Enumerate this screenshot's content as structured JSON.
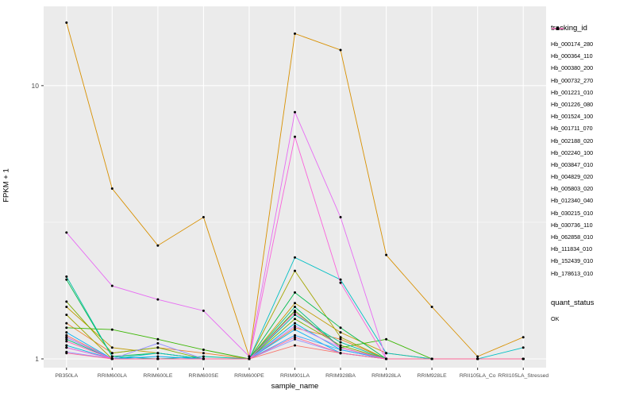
{
  "figure": {
    "y_axis_label": "FPKM + 1",
    "x_axis_label": "sample_name",
    "tracking_legend_title": "tracking_id",
    "quant_legend_title": "quant_status",
    "quant_legend_item": "OK"
  },
  "chart_data": {
    "type": "line",
    "title": "",
    "xlabel": "sample_name",
    "ylabel": "FPKM + 1",
    "y_scale": "log10",
    "ylim": [
      1,
      18
    ],
    "y_ticks": [
      1,
      10
    ],
    "y_tick_labels": [
      "1",
      "10"
    ],
    "y_minor_ticks": [
      3.1623
    ],
    "grid": true,
    "legend_position": "right",
    "panel_background": "#EBEBEB",
    "grid_color": "#FFFFFF",
    "point_color": "#000000",
    "categories": [
      "PB350LA",
      "RRIM600LA",
      "RRIM600LE",
      "RRIM600SE",
      "RRIM600PE",
      "RRIM901LA",
      "RRIM928BA",
      "RRIM928LA",
      "RRIM928LE",
      "RRII105LA_Co",
      "RRII105LA_Stressed"
    ],
    "series": [
      {
        "name": "Hb_000174_280",
        "color": "#F8766D",
        "values": [
          1.22,
          1.0,
          1.0,
          1.0,
          1.0,
          1.12,
          1.05,
          1.0,
          1.0,
          1.0,
          1.0
        ]
      },
      {
        "name": "Hb_000364_110",
        "color": "#EA8331",
        "values": [
          1.35,
          1.05,
          1.1,
          1.05,
          1.0,
          1.3,
          1.18,
          1.0,
          1.0,
          1.0,
          1.0
        ]
      },
      {
        "name": "Hb_000380_200",
        "color": "#D89000",
        "values": [
          17.0,
          4.2,
          2.6,
          3.3,
          1.02,
          15.5,
          13.5,
          2.4,
          1.55,
          1.02,
          1.2
        ]
      },
      {
        "name": "Hb_000732_270",
        "color": "#C09B00",
        "values": [
          1.55,
          1.1,
          1.05,
          1.0,
          1.0,
          1.6,
          1.25,
          1.05,
          1.0,
          1.0,
          1.0
        ]
      },
      {
        "name": "Hb_001221_010",
        "color": "#A3A500",
        "values": [
          1.45,
          1.0,
          1.0,
          1.0,
          1.0,
          2.1,
          1.2,
          1.0,
          1.0,
          1.0,
          1.0
        ]
      },
      {
        "name": "Hb_001226_080",
        "color": "#7CAE00",
        "values": [
          1.62,
          1.05,
          1.1,
          1.0,
          1.0,
          1.4,
          1.12,
          1.0,
          1.0,
          1.0,
          1.0
        ]
      },
      {
        "name": "Hb_001524_100",
        "color": "#39B600",
        "values": [
          1.3,
          1.28,
          1.18,
          1.08,
          1.0,
          1.5,
          1.1,
          1.18,
          1.0,
          1.0,
          1.0
        ]
      },
      {
        "name": "Hb_001711_070",
        "color": "#00BB4E",
        "values": [
          1.95,
          1.02,
          1.05,
          1.0,
          1.0,
          1.75,
          1.3,
          1.0,
          1.0,
          1.0,
          1.0
        ]
      },
      {
        "name": "Hb_002188_020",
        "color": "#00BF7D",
        "values": [
          1.18,
          1.0,
          1.0,
          1.0,
          1.0,
          1.55,
          1.1,
          1.0,
          1.0,
          1.0,
          1.0
        ]
      },
      {
        "name": "Hb_002240_100",
        "color": "#00C1A3",
        "values": [
          2.0,
          1.02,
          1.0,
          1.02,
          1.0,
          1.45,
          1.15,
          1.0,
          1.0,
          1.0,
          1.0
        ]
      },
      {
        "name": "Hb_003847_010",
        "color": "#00BFC4",
        "values": [
          1.2,
          1.0,
          1.05,
          1.0,
          1.0,
          2.35,
          1.95,
          1.05,
          1.0,
          1.0,
          1.1
        ]
      },
      {
        "name": "Hb_004829_020",
        "color": "#00BAE0",
        "values": [
          1.12,
          1.0,
          1.0,
          1.0,
          1.0,
          1.35,
          1.08,
          1.0,
          1.0,
          1.0,
          1.0
        ]
      },
      {
        "name": "Hb_005803_020",
        "color": "#00B0F6",
        "values": [
          1.25,
          1.0,
          1.02,
          1.0,
          1.0,
          1.28,
          1.05,
          1.0,
          1.0,
          1.0,
          1.0
        ]
      },
      {
        "name": "Hb_012340_040",
        "color": "#35A2FF",
        "values": [
          1.1,
          1.0,
          1.0,
          1.0,
          1.0,
          1.22,
          1.08,
          1.0,
          1.0,
          1.0,
          1.0
        ]
      },
      {
        "name": "Hb_030215_010",
        "color": "#9590FF",
        "values": [
          1.06,
          1.0,
          1.14,
          1.0,
          1.0,
          1.18,
          1.05,
          1.0,
          1.0,
          1.0,
          1.0
        ]
      },
      {
        "name": "Hb_030736_110",
        "color": "#C77CFF",
        "values": [
          1.2,
          1.0,
          1.0,
          1.0,
          1.0,
          1.32,
          1.1,
          1.0,
          1.0,
          1.0,
          1.0
        ]
      },
      {
        "name": "Hb_062858_010",
        "color": "#E76BF3",
        "values": [
          2.9,
          1.85,
          1.65,
          1.5,
          1.02,
          8.0,
          3.3,
          1.0,
          1.0,
          1.0,
          1.0
        ]
      },
      {
        "name": "Hb_111834_010",
        "color": "#FA62DB",
        "values": [
          1.1,
          1.0,
          1.0,
          1.0,
          1.0,
          6.5,
          1.9,
          1.0,
          1.0,
          1.0,
          1.0
        ]
      },
      {
        "name": "Hb_152439_010",
        "color": "#FF62BC",
        "values": [
          1.16,
          1.0,
          1.0,
          1.0,
          1.0,
          1.48,
          1.1,
          1.0,
          1.0,
          1.0,
          1.0
        ]
      },
      {
        "name": "Hb_178613_010",
        "color": "#FF6A98",
        "values": [
          1.05,
          1.0,
          1.0,
          1.0,
          1.0,
          1.2,
          1.05,
          1.0,
          1.0,
          1.0,
          1.0
        ]
      }
    ],
    "quant_status": {
      "title": "quant_status",
      "items": [
        "OK"
      ]
    }
  }
}
